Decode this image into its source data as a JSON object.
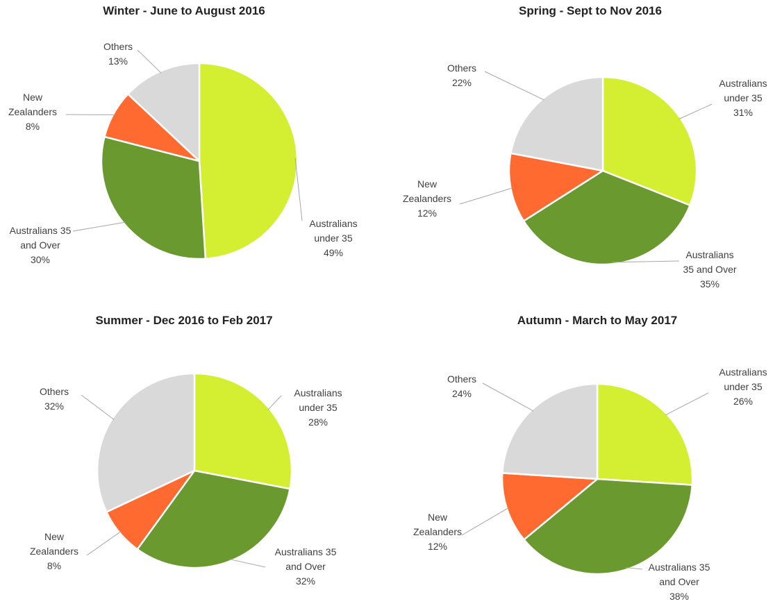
{
  "chart_data": [
    {
      "type": "pie",
      "title": "Winter - June to August 2016",
      "categories": [
        "Australians under 35",
        "Australians 35 and Over",
        "New Zealanders",
        "Others"
      ],
      "values": [
        49,
        30,
        8,
        13
      ],
      "value_labels": [
        "49%",
        "30%",
        "8%",
        "13%"
      ],
      "colors": [
        "#d4ef32",
        "#6a9a2f",
        "#ff6a30",
        "#d9d9d9"
      ]
    },
    {
      "type": "pie",
      "title": "Spring - Sept to Nov 2016",
      "categories": [
        "Australians under 35",
        "Australians 35 and Over",
        "New Zealanders",
        "Others"
      ],
      "values": [
        31,
        35,
        12,
        22
      ],
      "value_labels": [
        "31%",
        "35%",
        "12%",
        "22%"
      ],
      "colors": [
        "#d4ef32",
        "#6a9a2f",
        "#ff6a30",
        "#d9d9d9"
      ]
    },
    {
      "type": "pie",
      "title": "Summer - Dec 2016 to Feb 2017",
      "categories": [
        "Australians under 35",
        "Australians 35 and Over",
        "New Zealanders",
        "Others"
      ],
      "values": [
        28,
        32,
        8,
        32
      ],
      "value_labels": [
        "28%",
        "32%",
        "8%",
        "32%"
      ],
      "colors": [
        "#d4ef32",
        "#6a9a2f",
        "#ff6a30",
        "#d9d9d9"
      ]
    },
    {
      "type": "pie",
      "title": "Autumn - March to May 2017",
      "categories": [
        "Australians under 35",
        "Australians 35 and Over",
        "New Zealanders",
        "Others"
      ],
      "values": [
        26,
        38,
        12,
        24
      ],
      "value_labels": [
        "26%",
        "38%",
        "12%",
        "24%"
      ],
      "colors": [
        "#d4ef32",
        "#6a9a2f",
        "#ff6a30",
        "#d9d9d9"
      ]
    }
  ]
}
